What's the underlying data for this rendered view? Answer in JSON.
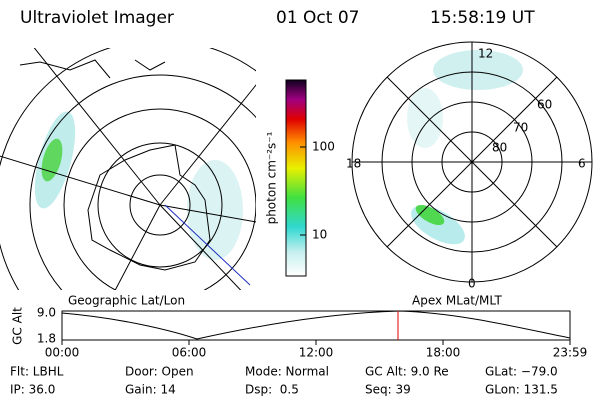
{
  "header": {
    "title": "Ultraviolet Imager",
    "date": "01 Oct 07",
    "time": "15:58:19 UT"
  },
  "colorbar": {
    "unit": "photon cm⁻²s⁻¹",
    "ticks": [
      "100",
      "10"
    ]
  },
  "left_map": {
    "label": "Geographic Lat/Lon"
  },
  "right_map": {
    "label": "Apex MLat/MLT",
    "mlt_labels": [
      "12",
      "18",
      "6",
      "0"
    ],
    "mlat_labels": [
      "60",
      "70",
      "80"
    ]
  },
  "altitude_plot": {
    "ylabel": "GC Alt",
    "yticks": [
      "9.0",
      "1.8"
    ],
    "xticks": [
      "00:00",
      "06:00",
      "12:00",
      "18:00",
      "23:59"
    ]
  },
  "footer": {
    "rows": [
      [
        "Flt: LBHL",
        "Door: Open",
        "Mode: Normal",
        "GC Alt: 9.0 Re",
        "GLat: −79.0"
      ],
      [
        "IP: 36.0",
        "Gain: 14",
        "Dsp:  0.5",
        "Seq: 39",
        "GLon: 131.5"
      ]
    ]
  }
}
